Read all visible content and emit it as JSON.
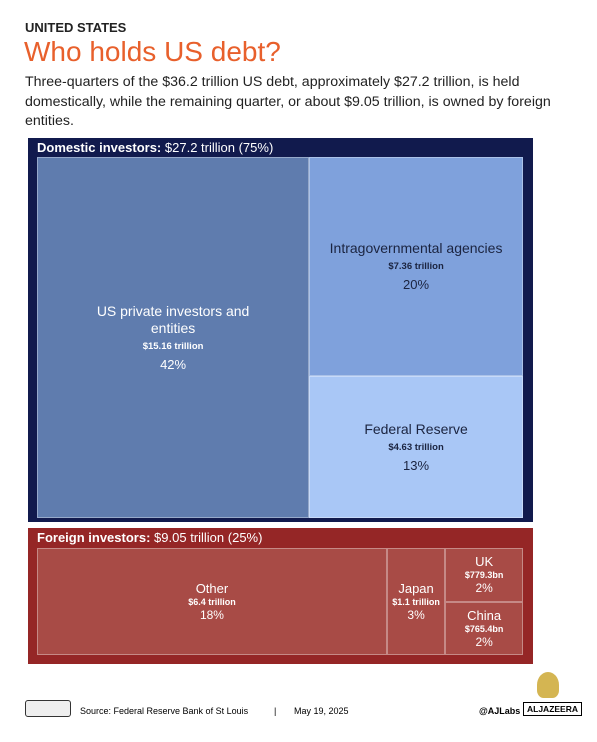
{
  "chart_data": {
    "type": "treemap",
    "kicker": "UNITED STATES",
    "title": "Who holds US debt?",
    "subtitle": "Three-quarters of the $36.2 trillion US debt, approximately $27.2 trillion, is held domestically, while the remaining quarter, or about $9.05 trillion, is owned by foreign entities.",
    "groups": [
      {
        "name": "Domestic investors:",
        "total_label": "$27.2 trillion (75%)",
        "color": "#111a4d",
        "items": [
          {
            "name": "US private investors and entities",
            "amount_label": "$15.16 trillion",
            "value": 42,
            "value_label": "42%",
            "color": "#5f7cae",
            "text_color": "#ffffff"
          },
          {
            "name": "Intragovernmental agencies",
            "amount_label": "$7.36 trillion",
            "value": 20,
            "value_label": "20%",
            "color": "#7fa1dc",
            "text_color": "#1b2440"
          },
          {
            "name": "Federal Reserve",
            "amount_label": "$4.63 trillion",
            "value": 13,
            "value_label": "13%",
            "color": "#a9c7f6",
            "text_color": "#1b2440"
          }
        ]
      },
      {
        "name": "Foreign investors:",
        "total_label": "$9.05 trillion (25%)",
        "color": "#952626",
        "items": [
          {
            "name": "Other",
            "amount_label": "$6.4 trillion",
            "value": 18,
            "value_label": "18%",
            "color": "#a84b46",
            "text_color": "#ffffff"
          },
          {
            "name": "Japan",
            "amount_label": "$1.1 trillion",
            "value": 3,
            "value_label": "3%",
            "color": "#a84b46",
            "text_color": "#ffffff"
          },
          {
            "name": "UK",
            "amount_label": "$779.3bn",
            "value": 2,
            "value_label": "2%",
            "color": "#a84b46",
            "text_color": "#ffffff"
          },
          {
            "name": "China",
            "amount_label": "$765.4bn",
            "value": 2,
            "value_label": "2%",
            "color": "#a84b46",
            "text_color": "#ffffff"
          }
        ]
      }
    ],
    "source": "Source:  Federal Reserve Bank of St Louis",
    "separator": "|",
    "date": "May 19, 2025",
    "credit": "@AJLabs",
    "logo": "ALJAZEERA"
  }
}
